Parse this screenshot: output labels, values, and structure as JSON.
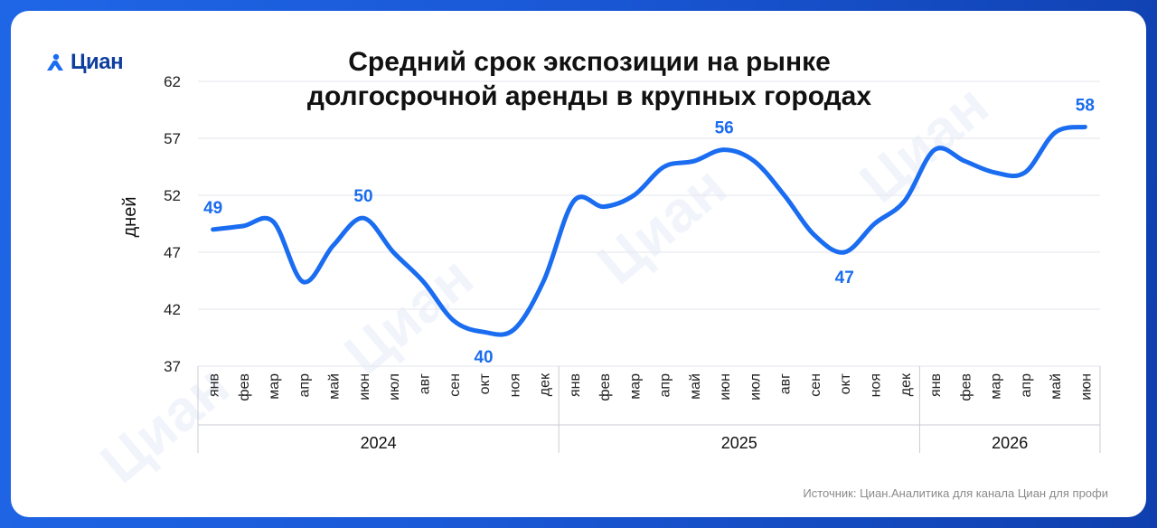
{
  "brand": {
    "name": "Циан"
  },
  "watermark": "Циан",
  "source": "Источник: Циан.Аналитика для канала Циан для профи",
  "chart_data": {
    "type": "line",
    "title": "Средний срок экспозиции на рынке долгосрочной аренды в крупных городах",
    "title_lines": [
      "Средний срок экспозиции на рынке",
      "долгосрочной аренды в крупных городах"
    ],
    "ylabel": "дней",
    "ylim": [
      37,
      62
    ],
    "yticks": [
      37,
      42,
      47,
      52,
      57,
      62
    ],
    "grid": true,
    "line_color": "#1a6cf0",
    "label_color": "#1a6cf0",
    "categories": [
      "янв",
      "фев",
      "мар",
      "апр",
      "май",
      "июн",
      "июл",
      "авг",
      "сен",
      "окт",
      "ноя",
      "дек",
      "янв",
      "фев",
      "мар",
      "апр",
      "май",
      "июн",
      "июл",
      "авг",
      "сен",
      "окт",
      "ноя",
      "дек",
      "янв",
      "фев",
      "мар",
      "апр",
      "май",
      "июн"
    ],
    "groups": [
      {
        "label": "2024",
        "start": 0,
        "end": 11
      },
      {
        "label": "2025",
        "start": 12,
        "end": 23
      },
      {
        "label": "2026",
        "start": 24,
        "end": 29
      }
    ],
    "series": [
      {
        "values": [
          49.0,
          49.3,
          49.7,
          44.4,
          47.6,
          50.0,
          47.0,
          44.4,
          41.0,
          40.0,
          40.2,
          44.5,
          51.5,
          51.0,
          52.0,
          54.5,
          55.0,
          56.0,
          55.0,
          52.0,
          48.5,
          47.0,
          49.5,
          51.5,
          56.0,
          55.0,
          54.0,
          54.0,
          57.5,
          58.0
        ]
      }
    ],
    "data_labels": [
      {
        "index": 0,
        "text": "49",
        "pos": "above"
      },
      {
        "index": 5,
        "text": "50",
        "pos": "above"
      },
      {
        "index": 9,
        "text": "40",
        "pos": "below"
      },
      {
        "index": 17,
        "text": "56",
        "pos": "above"
      },
      {
        "index": 21,
        "text": "47",
        "pos": "below"
      },
      {
        "index": 29,
        "text": "58",
        "pos": "above"
      }
    ]
  }
}
